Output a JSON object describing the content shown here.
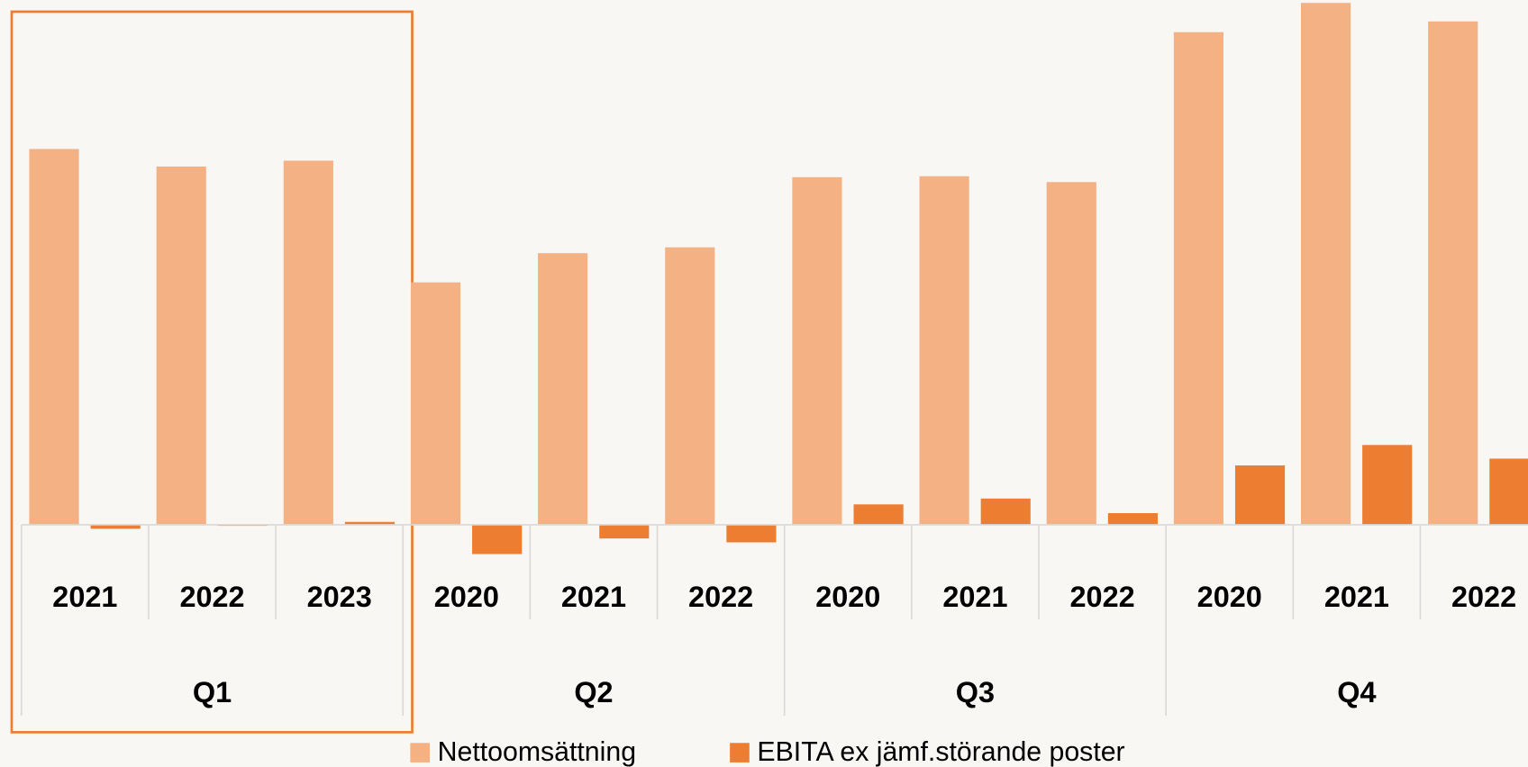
{
  "chart_data": {
    "type": "bar",
    "groups": [
      {
        "name": "Q1",
        "categories": [
          "2021",
          "2022",
          "2023"
        ]
      },
      {
        "name": "Q2",
        "categories": [
          "2020",
          "2021",
          "2022"
        ]
      },
      {
        "name": "Q3",
        "categories": [
          "2020",
          "2021",
          "2022"
        ]
      },
      {
        "name": "Q4",
        "categories": [
          "2020",
          "2021",
          "2022"
        ]
      }
    ],
    "series": [
      {
        "name": "Nettoomsättning",
        "color": "#f4b183",
        "values": [
          386,
          368,
          374,
          249,
          279,
          285,
          357,
          358,
          352,
          506,
          536,
          517
        ]
      },
      {
        "name": "EBITA ex jämf.störande poster",
        "color": "#ed7d31",
        "values": [
          -4,
          -1,
          3,
          -30,
          -14,
          -18,
          21,
          27,
          12,
          61,
          82,
          68
        ]
      }
    ],
    "ylim": [
      -40,
      539
    ]
  }
}
